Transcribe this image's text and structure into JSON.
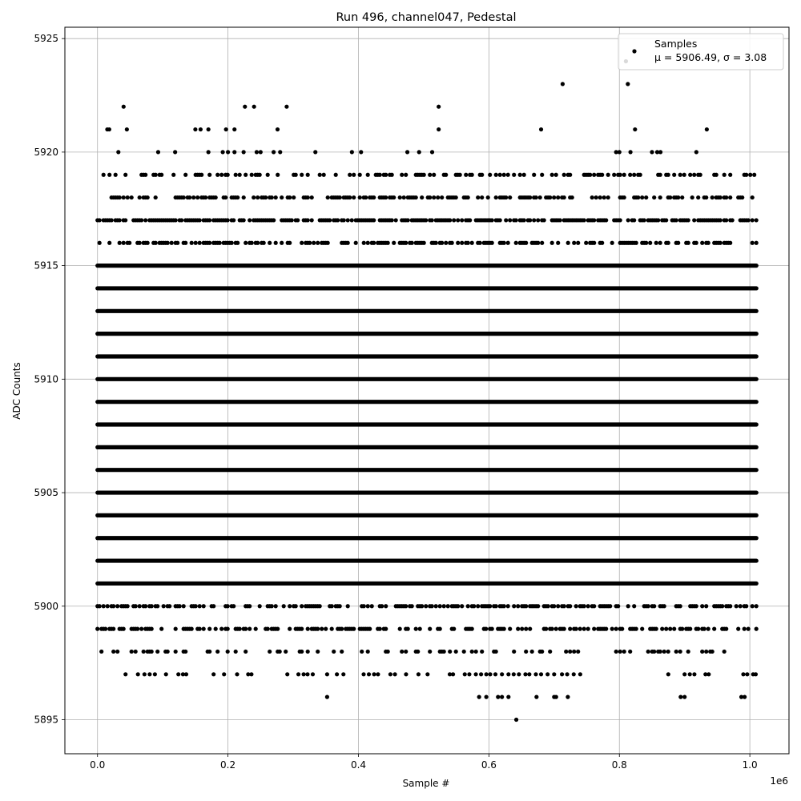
{
  "chart_data": {
    "type": "scatter",
    "title": "Run 496, channel047, Pedestal",
    "xlabel": "Sample #",
    "ylabel": "ADC Counts",
    "x_offset_label": "1e6",
    "xlim": [
      -50000,
      1060000
    ],
    "ylim": [
      5893.5,
      5925.5
    ],
    "x_ticks": [
      0,
      200000,
      400000,
      600000,
      800000,
      1000000
    ],
    "x_tick_labels": [
      "0.0",
      "0.2",
      "0.4",
      "0.6",
      "0.8",
      "1.0"
    ],
    "y_ticks": [
      5895,
      5900,
      5905,
      5910,
      5915,
      5920,
      5925
    ],
    "y_tick_labels": [
      "5895",
      "5900",
      "5905",
      "5910",
      "5915",
      "5920",
      "5925"
    ],
    "grid": true,
    "legend": {
      "placement": "top-right",
      "series_name": "Samples",
      "stats_text": "μ = 5906.49, σ = 3.08"
    },
    "marker_color": "#000000",
    "series": [
      {
        "name": "Samples",
        "x_range": [
          0,
          1010000
        ],
        "dense_levels": [
          5901,
          5902,
          5903,
          5904,
          5905,
          5906,
          5907,
          5908,
          5909,
          5910,
          5911,
          5912,
          5913,
          5914,
          5915
        ],
        "sparse_levels": [
          {
            "y": 5916,
            "density": 0.55
          },
          {
            "y": 5917,
            "density": 0.75
          },
          {
            "y": 5918,
            "density": 0.5
          },
          {
            "y": 5919,
            "density": 0.35
          },
          {
            "y": 5900,
            "density": 0.55
          },
          {
            "y": 5899,
            "density": 0.5
          },
          {
            "y": 5898,
            "density": 0.22
          }
        ],
        "points": [
          {
            "x": 15000,
            "y": 5921
          },
          {
            "x": 18000,
            "y": 5921
          },
          {
            "x": 32000,
            "y": 5920
          },
          {
            "x": 40000,
            "y": 5922
          },
          {
            "x": 45000,
            "y": 5921
          },
          {
            "x": 93000,
            "y": 5920
          },
          {
            "x": 119000,
            "y": 5920
          },
          {
            "x": 150000,
            "y": 5921
          },
          {
            "x": 158000,
            "y": 5921
          },
          {
            "x": 170000,
            "y": 5921
          },
          {
            "x": 170000,
            "y": 5920
          },
          {
            "x": 192000,
            "y": 5920
          },
          {
            "x": 197000,
            "y": 5921
          },
          {
            "x": 200000,
            "y": 5920
          },
          {
            "x": 210000,
            "y": 5921
          },
          {
            "x": 210000,
            "y": 5920
          },
          {
            "x": 224000,
            "y": 5920
          },
          {
            "x": 226000,
            "y": 5922
          },
          {
            "x": 240000,
            "y": 5922
          },
          {
            "x": 244000,
            "y": 5920
          },
          {
            "x": 250000,
            "y": 5920
          },
          {
            "x": 270000,
            "y": 5920
          },
          {
            "x": 276000,
            "y": 5921
          },
          {
            "x": 280000,
            "y": 5920
          },
          {
            "x": 290000,
            "y": 5922
          },
          {
            "x": 334000,
            "y": 5920
          },
          {
            "x": 390000,
            "y": 5920
          },
          {
            "x": 404000,
            "y": 5920
          },
          {
            "x": 475000,
            "y": 5920
          },
          {
            "x": 493000,
            "y": 5920
          },
          {
            "x": 513000,
            "y": 5920
          },
          {
            "x": 523000,
            "y": 5922
          },
          {
            "x": 523000,
            "y": 5921
          },
          {
            "x": 680000,
            "y": 5921
          },
          {
            "x": 713000,
            "y": 5923
          },
          {
            "x": 795000,
            "y": 5920
          },
          {
            "x": 800000,
            "y": 5920
          },
          {
            "x": 810000,
            "y": 5924
          },
          {
            "x": 813000,
            "y": 5923
          },
          {
            "x": 817000,
            "y": 5920
          },
          {
            "x": 824000,
            "y": 5921
          },
          {
            "x": 850000,
            "y": 5920
          },
          {
            "x": 858000,
            "y": 5920
          },
          {
            "x": 863000,
            "y": 5920
          },
          {
            "x": 918000,
            "y": 5920
          },
          {
            "x": 934000,
            "y": 5921
          },
          {
            "x": 43000,
            "y": 5897
          },
          {
            "x": 62000,
            "y": 5897
          },
          {
            "x": 72000,
            "y": 5897
          },
          {
            "x": 80000,
            "y": 5897
          },
          {
            "x": 88000,
            "y": 5897
          },
          {
            "x": 105000,
            "y": 5897
          },
          {
            "x": 124000,
            "y": 5897
          },
          {
            "x": 131000,
            "y": 5897
          },
          {
            "x": 136000,
            "y": 5897
          },
          {
            "x": 178000,
            "y": 5897
          },
          {
            "x": 194000,
            "y": 5897
          },
          {
            "x": 214000,
            "y": 5897
          },
          {
            "x": 231000,
            "y": 5897
          },
          {
            "x": 236000,
            "y": 5897
          },
          {
            "x": 291000,
            "y": 5897
          },
          {
            "x": 308000,
            "y": 5897
          },
          {
            "x": 316000,
            "y": 5897
          },
          {
            "x": 322000,
            "y": 5897
          },
          {
            "x": 330000,
            "y": 5897
          },
          {
            "x": 352000,
            "y": 5897
          },
          {
            "x": 367000,
            "y": 5897
          },
          {
            "x": 377000,
            "y": 5897
          },
          {
            "x": 408000,
            "y": 5897
          },
          {
            "x": 416000,
            "y": 5897
          },
          {
            "x": 424000,
            "y": 5897
          },
          {
            "x": 430000,
            "y": 5897
          },
          {
            "x": 449000,
            "y": 5897
          },
          {
            "x": 456000,
            "y": 5897
          },
          {
            "x": 473000,
            "y": 5897
          },
          {
            "x": 492000,
            "y": 5897
          },
          {
            "x": 506000,
            "y": 5897
          },
          {
            "x": 540000,
            "y": 5897
          },
          {
            "x": 545000,
            "y": 5897
          },
          {
            "x": 563000,
            "y": 5897
          },
          {
            "x": 570000,
            "y": 5897
          },
          {
            "x": 580000,
            "y": 5897
          },
          {
            "x": 588000,
            "y": 5897
          },
          {
            "x": 596000,
            "y": 5897
          },
          {
            "x": 602000,
            "y": 5897
          },
          {
            "x": 610000,
            "y": 5897
          },
          {
            "x": 620000,
            "y": 5897
          },
          {
            "x": 630000,
            "y": 5897
          },
          {
            "x": 638000,
            "y": 5897
          },
          {
            "x": 646000,
            "y": 5897
          },
          {
            "x": 656000,
            "y": 5897
          },
          {
            "x": 662000,
            "y": 5897
          },
          {
            "x": 672000,
            "y": 5897
          },
          {
            "x": 680000,
            "y": 5897
          },
          {
            "x": 690000,
            "y": 5897
          },
          {
            "x": 700000,
            "y": 5897
          },
          {
            "x": 712000,
            "y": 5897
          },
          {
            "x": 720000,
            "y": 5897
          },
          {
            "x": 730000,
            "y": 5897
          },
          {
            "x": 740000,
            "y": 5897
          },
          {
            "x": 875000,
            "y": 5897
          },
          {
            "x": 900000,
            "y": 5897
          },
          {
            "x": 908000,
            "y": 5897
          },
          {
            "x": 915000,
            "y": 5897
          },
          {
            "x": 932000,
            "y": 5897
          },
          {
            "x": 937000,
            "y": 5897
          },
          {
            "x": 990000,
            "y": 5897
          },
          {
            "x": 996000,
            "y": 5897
          },
          {
            "x": 1005000,
            "y": 5897
          },
          {
            "x": 1009000,
            "y": 5897
          },
          {
            "x": 352000,
            "y": 5896
          },
          {
            "x": 585000,
            "y": 5896
          },
          {
            "x": 596000,
            "y": 5896
          },
          {
            "x": 614000,
            "y": 5896
          },
          {
            "x": 620000,
            "y": 5896
          },
          {
            "x": 630000,
            "y": 5896
          },
          {
            "x": 673000,
            "y": 5896
          },
          {
            "x": 700000,
            "y": 5896
          },
          {
            "x": 703000,
            "y": 5896
          },
          {
            "x": 721000,
            "y": 5896
          },
          {
            "x": 894000,
            "y": 5896
          },
          {
            "x": 900000,
            "y": 5896
          },
          {
            "x": 987000,
            "y": 5896
          },
          {
            "x": 992000,
            "y": 5896
          },
          {
            "x": 642000,
            "y": 5895
          }
        ]
      }
    ]
  }
}
